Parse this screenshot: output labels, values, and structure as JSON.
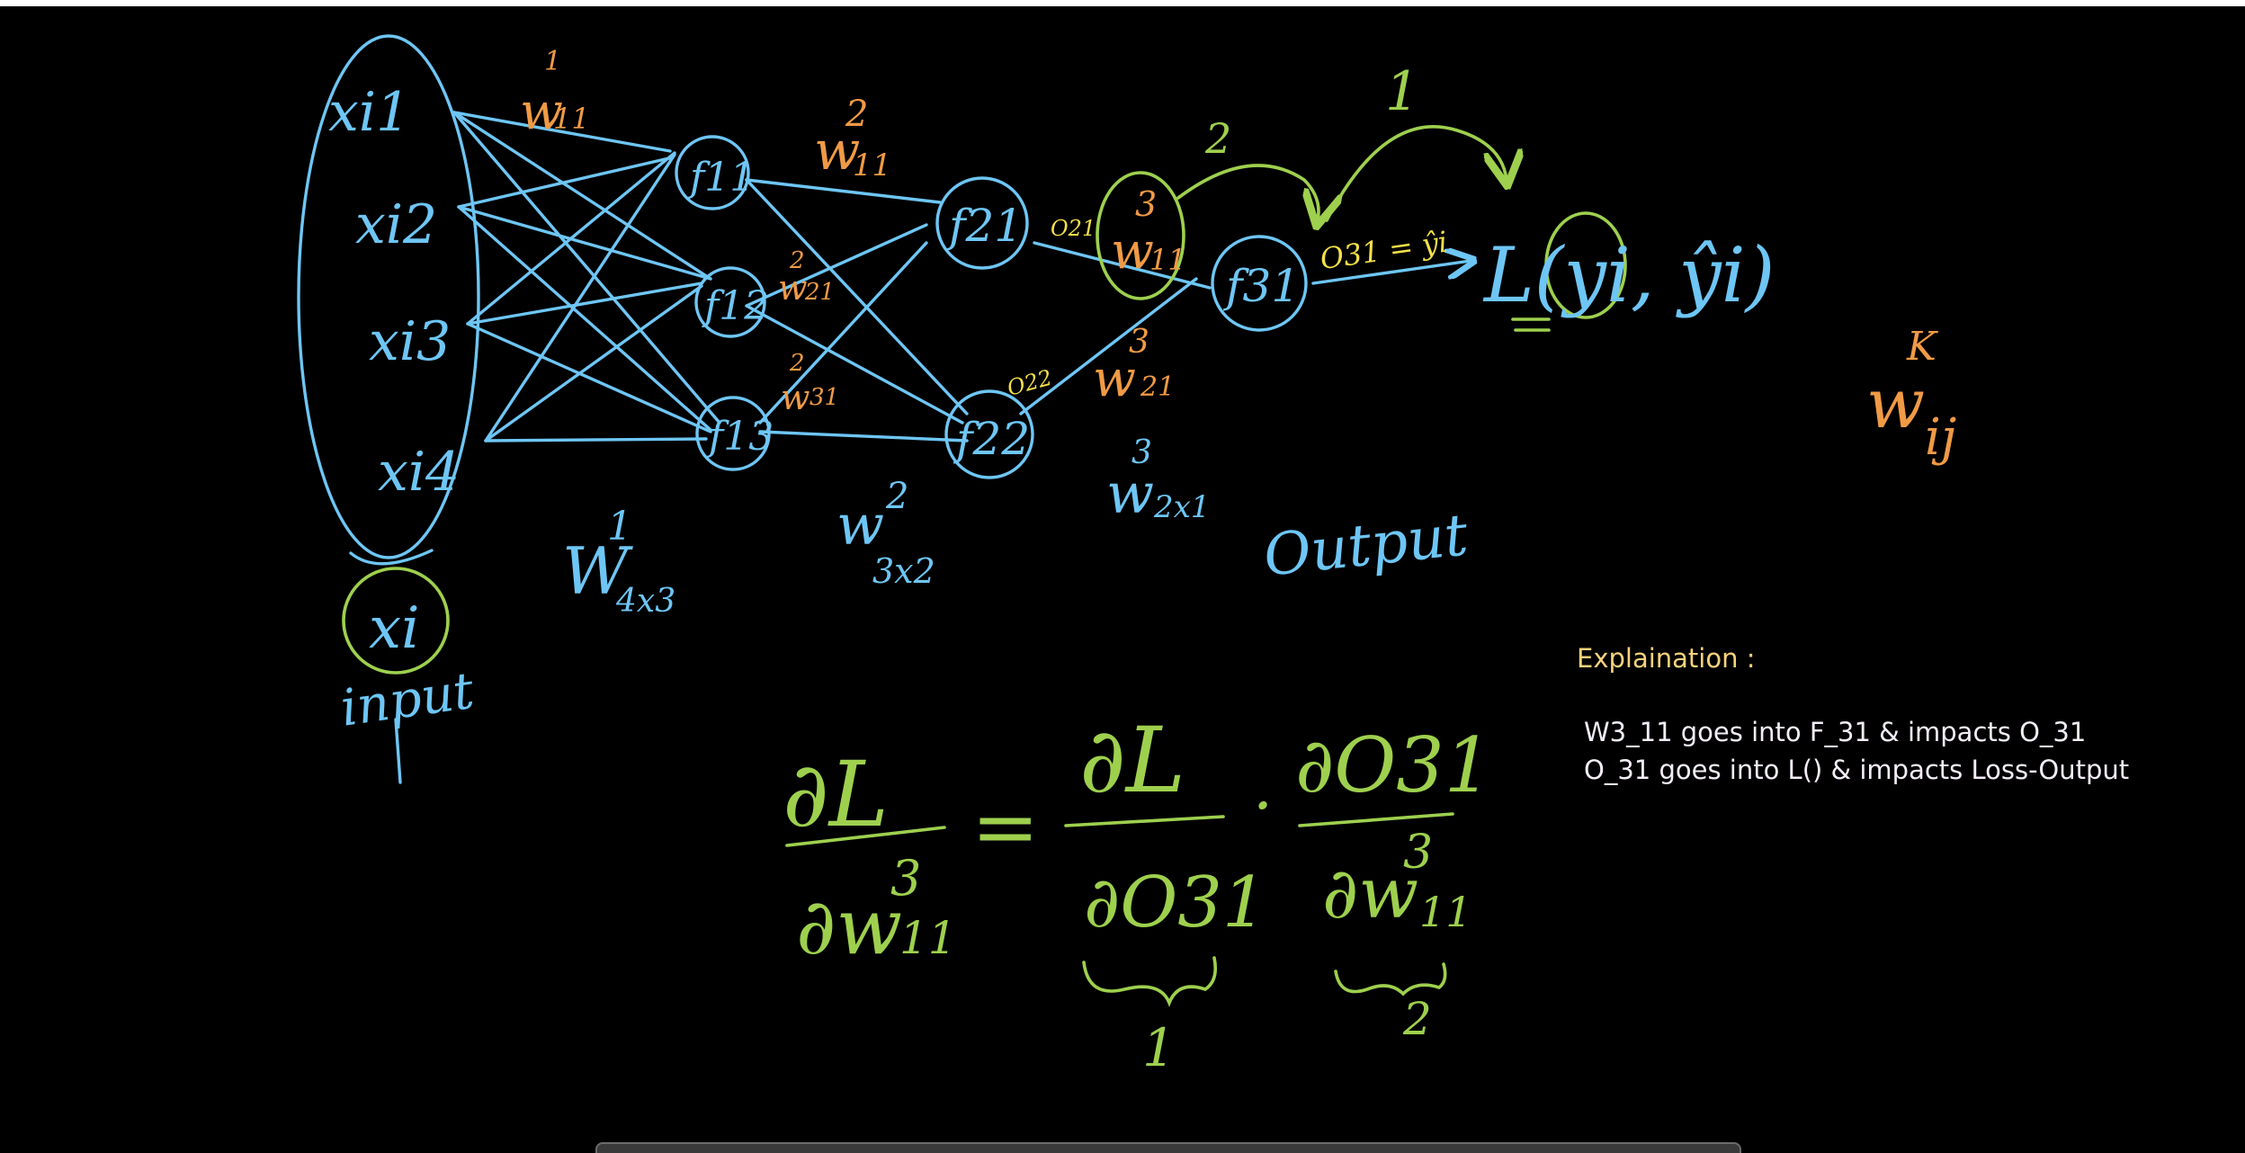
{
  "colors": {
    "network": "#6ec6f5",
    "weights": "#f09a45",
    "calculus": "#9ed04e",
    "outputs": "#f3e04a",
    "explain_title": "#f6d27c",
    "explain_text": "#f3edf7"
  },
  "inputs": [
    "xi1",
    "xi2",
    "xi3",
    "xi4"
  ],
  "input_label": "xi",
  "input_caption": "input",
  "layer1_nodes": [
    "f11",
    "f12",
    "f13"
  ],
  "layer2_nodes": [
    "f21",
    "f22"
  ],
  "layer3_nodes": [
    "f31"
  ],
  "weight_labels": {
    "w1_11": {
      "base": "w",
      "sup": "1",
      "sub": "11"
    },
    "w2_11": {
      "base": "w",
      "sup": "2",
      "sub": "11"
    },
    "w2_21": {
      "base": "w",
      "sup": "2",
      "sub": "21"
    },
    "w2_31": {
      "base": "w",
      "sup": "2",
      "sub": "31"
    },
    "w3_11": {
      "base": "w",
      "sup": "3",
      "sub": "11"
    },
    "w3_21": {
      "base": "w",
      "sup": "3",
      "sub": "21"
    }
  },
  "matrix_labels": {
    "m1": {
      "base": "W",
      "sup": "1",
      "sub": "4x3"
    },
    "m2": {
      "base": "w",
      "sup": "2",
      "sub": "3x2"
    },
    "m3": {
      "base": "w",
      "sup": "3",
      "sub": "2x1"
    }
  },
  "output_labels": {
    "o21": "O21",
    "o22": "O22",
    "o31": "O31 = ŷi"
  },
  "output_word": "Output",
  "loss": {
    "text": "L(yi, ŷi)",
    "arrow1": "1",
    "arrow2": "2"
  },
  "generic_weight": {
    "base": "w",
    "sup": "K",
    "sub": "ij"
  },
  "equation": {
    "lhs_num": "∂L",
    "lhs_den_base": "∂w",
    "lhs_den_sup": "3",
    "lhs_den_sub": "11",
    "equals": "=",
    "t1_num": "∂L",
    "t1_den": "∂O31",
    "dot": "·",
    "t2_num": "∂O31",
    "t2_den_base": "∂w",
    "t2_den_sup": "3",
    "t2_den_sub": "11",
    "brace1": "1",
    "brace2": "2"
  },
  "explanation": {
    "title": "Explaination :",
    "lines": [
      "W3_11 goes into F_31 & impacts O_31",
      "O_31 goes into L() & impacts Loss-Output"
    ]
  }
}
